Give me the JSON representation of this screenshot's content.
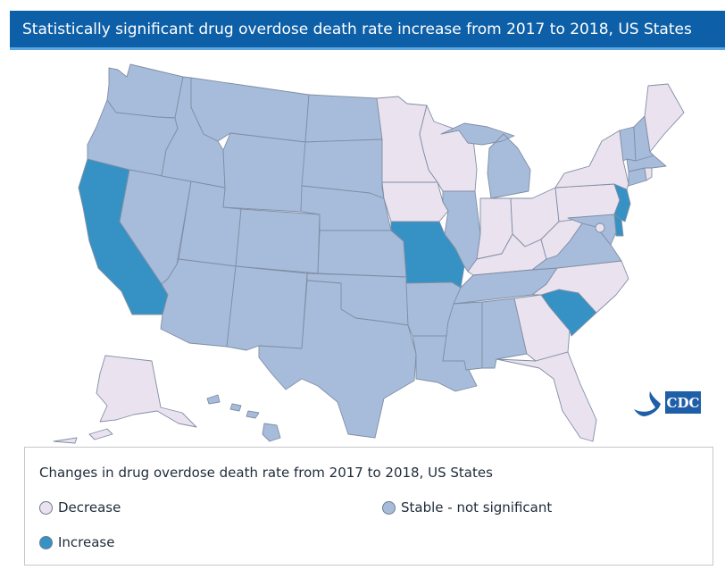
{
  "header": {
    "title": "Statistically significant drug overdose death rate increase from 2017 to 2018, US States"
  },
  "colors": {
    "header_bg": "#0d5fa8",
    "decrease": "#ebe2ef",
    "stable": "#a7bcdb",
    "increase": "#3692c4",
    "border": "#7f8ea4"
  },
  "logo": {
    "name": "cdc-logo",
    "text": "CDC"
  },
  "legend": {
    "title": "Changes in drug overdose death rate from 2017 to 2018, US States",
    "items": [
      {
        "key": "decrease",
        "label": "Decrease"
      },
      {
        "key": "stable",
        "label": "Stable - not significant"
      },
      {
        "key": "increase",
        "label": "Increase"
      }
    ]
  },
  "map": {
    "states": {
      "WA": "stable",
      "OR": "stable",
      "CA": "increase",
      "NV": "stable",
      "ID": "stable",
      "MT": "stable",
      "WY": "stable",
      "UT": "stable",
      "AZ": "stable",
      "CO": "stable",
      "NM": "stable",
      "ND": "stable",
      "SD": "stable",
      "NE": "stable",
      "KS": "stable",
      "OK": "stable",
      "TX": "stable",
      "MN": "decrease",
      "IA": "decrease",
      "MO": "increase",
      "AR": "stable",
      "LA": "stable",
      "WI": "decrease",
      "IL": "stable",
      "MI": "stable",
      "IN": "decrease",
      "OH": "decrease",
      "KY": "decrease",
      "TN": "stable",
      "MS": "stable",
      "AL": "stable",
      "GA": "decrease",
      "FL": "decrease",
      "SC": "increase",
      "NC": "decrease",
      "VA": "stable",
      "WV": "decrease",
      "PA": "decrease",
      "NY": "decrease",
      "NJ": "increase",
      "DE": "increase",
      "MD": "stable",
      "DC": "decrease",
      "CT": "stable",
      "RI": "decrease",
      "MA": "stable",
      "VT": "stable",
      "NH": "stable",
      "ME": "decrease",
      "AK": "decrease",
      "HI": "stable"
    }
  }
}
